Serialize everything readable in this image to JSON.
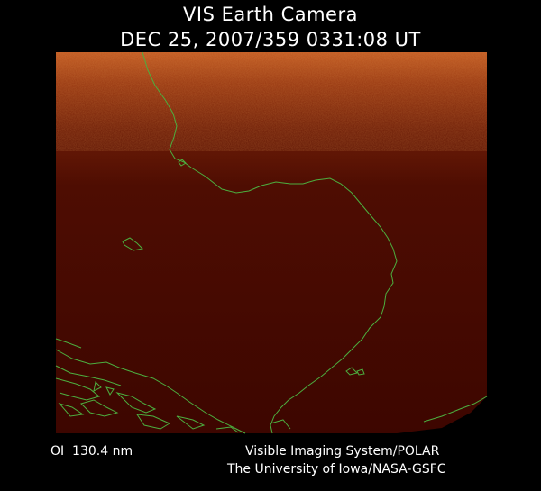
{
  "header": {
    "title": "VIS Earth Camera",
    "timestamp": "DEC 25, 2007/359 0331:08 UT"
  },
  "footer": {
    "band": "OI  130.4 nm",
    "instrument": "Visible Imaging System/POLAR",
    "institution": "The University of Iowa/NASA-GSFC"
  },
  "image": {
    "background_color": "#000000",
    "disk_color": "#3d0600",
    "aurora_color": "#b24a18",
    "coastline_color": "#4caf3f",
    "text_color": "#ffffff"
  }
}
